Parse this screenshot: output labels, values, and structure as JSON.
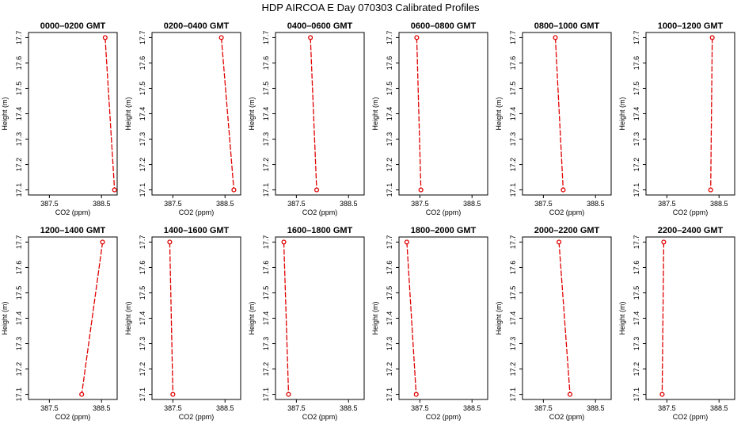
{
  "figure": {
    "title": "HDP  AIRCOA E  Day 070303  Calibrated Profiles"
  },
  "colors": {
    "series": "#e00000",
    "axes": "#000000",
    "background": "#ffffff"
  },
  "chart_data": [
    {
      "type": "line",
      "title": "0000–0200 GMT",
      "xlabel": "CO2 (ppm)",
      "ylabel": "Height (m)",
      "xlim": [
        387.1,
        388.8
      ],
      "ylim": [
        17.08,
        17.72
      ],
      "xticks": [
        {
          "v": 387.5,
          "label": "387.5"
        },
        {
          "v": 388.5,
          "label": "388.5"
        }
      ],
      "yticks": [
        17.1,
        17.2,
        17.3,
        17.4,
        17.5,
        17.6,
        17.7
      ],
      "series": [
        {
          "name": "profile",
          "x": [
            388.57,
            388.75
          ],
          "y": [
            17.7,
            17.1
          ]
        }
      ]
    },
    {
      "type": "line",
      "title": "0200–0400 GMT",
      "xlabel": "CO2 (ppm)",
      "ylabel": "Height (m)",
      "xlim": [
        387.1,
        388.8
      ],
      "ylim": [
        17.08,
        17.72
      ],
      "xticks": [
        {
          "v": 387.5,
          "label": "387.5"
        },
        {
          "v": 388.5,
          "label": "388.5"
        }
      ],
      "yticks": [
        17.1,
        17.2,
        17.3,
        17.4,
        17.5,
        17.6,
        17.7
      ],
      "series": [
        {
          "name": "profile",
          "x": [
            388.43,
            388.67
          ],
          "y": [
            17.7,
            17.1
          ]
        }
      ]
    },
    {
      "type": "line",
      "title": "0400–0600 GMT",
      "xlabel": "CO2 (ppm)",
      "ylabel": "Height (m)",
      "xlim": [
        387.1,
        388.8
      ],
      "ylim": [
        17.08,
        17.72
      ],
      "xticks": [
        {
          "v": 387.5,
          "label": "387.5"
        },
        {
          "v": 388.5,
          "label": "388.5"
        }
      ],
      "yticks": [
        17.1,
        17.2,
        17.3,
        17.4,
        17.5,
        17.6,
        17.7
      ],
      "series": [
        {
          "name": "profile",
          "x": [
            387.77,
            387.89
          ],
          "y": [
            17.7,
            17.1
          ]
        }
      ]
    },
    {
      "type": "line",
      "title": "0600–0800 GMT",
      "xlabel": "CO2 (ppm)",
      "ylabel": "Height (m)",
      "xlim": [
        387.1,
        388.8
      ],
      "ylim": [
        17.08,
        17.72
      ],
      "xticks": [
        {
          "v": 387.5,
          "label": "387.5"
        },
        {
          "v": 388.5,
          "label": "388.5"
        }
      ],
      "yticks": [
        17.1,
        17.2,
        17.3,
        17.4,
        17.5,
        17.6,
        17.7
      ],
      "series": [
        {
          "name": "profile",
          "x": [
            387.44,
            387.52
          ],
          "y": [
            17.7,
            17.1
          ]
        }
      ]
    },
    {
      "type": "line",
      "title": "0800–1000 GMT",
      "xlabel": "CO2 (ppm)",
      "ylabel": "Height (m)",
      "xlim": [
        387.1,
        388.8
      ],
      "ylim": [
        17.08,
        17.72
      ],
      "xticks": [
        {
          "v": 387.5,
          "label": "387.5"
        },
        {
          "v": 388.5,
          "label": "388.5"
        }
      ],
      "yticks": [
        17.1,
        17.2,
        17.3,
        17.4,
        17.5,
        17.6,
        17.7
      ],
      "series": [
        {
          "name": "profile",
          "x": [
            387.73,
            387.88
          ],
          "y": [
            17.7,
            17.1
          ]
        }
      ]
    },
    {
      "type": "line",
      "title": "1000–1200 GMT",
      "xlabel": "CO2 (ppm)",
      "ylabel": "Height (m)",
      "xlim": [
        387.1,
        388.8
      ],
      "ylim": [
        17.08,
        17.72
      ],
      "xticks": [
        {
          "v": 387.5,
          "label": "387.5"
        },
        {
          "v": 388.5,
          "label": "388.5"
        }
      ],
      "yticks": [
        17.1,
        17.2,
        17.3,
        17.4,
        17.5,
        17.6,
        17.7
      ],
      "series": [
        {
          "name": "profile",
          "x": [
            388.37,
            388.34
          ],
          "y": [
            17.7,
            17.1
          ]
        }
      ]
    },
    {
      "type": "line",
      "title": "1200–1400 GMT",
      "xlabel": "CO2 (ppm)",
      "ylabel": "Height (m)",
      "xlim": [
        387.1,
        388.8
      ],
      "ylim": [
        17.08,
        17.72
      ],
      "xticks": [
        {
          "v": 387.5,
          "label": "387.5"
        },
        {
          "v": 388.5,
          "label": "388.5"
        }
      ],
      "yticks": [
        17.1,
        17.2,
        17.3,
        17.4,
        17.5,
        17.6,
        17.7
      ],
      "series": [
        {
          "name": "profile",
          "x": [
            388.52,
            388.12
          ],
          "y": [
            17.7,
            17.1
          ]
        }
      ]
    },
    {
      "type": "line",
      "title": "1400–1600 GMT",
      "xlabel": "CO2 (ppm)",
      "ylabel": "Height (m)",
      "xlim": [
        387.1,
        388.8
      ],
      "ylim": [
        17.08,
        17.72
      ],
      "xticks": [
        {
          "v": 387.5,
          "label": "387.5"
        },
        {
          "v": 388.5,
          "label": "388.5"
        }
      ],
      "yticks": [
        17.1,
        17.2,
        17.3,
        17.4,
        17.5,
        17.6,
        17.7
      ],
      "series": [
        {
          "name": "profile",
          "x": [
            387.44,
            387.5
          ],
          "y": [
            17.7,
            17.1
          ]
        }
      ]
    },
    {
      "type": "line",
      "title": "1600–1800 GMT",
      "xlabel": "CO2 (ppm)",
      "ylabel": "Height (m)",
      "xlim": [
        387.1,
        388.8
      ],
      "ylim": [
        17.08,
        17.72
      ],
      "xticks": [
        {
          "v": 387.5,
          "label": "387.5"
        },
        {
          "v": 388.5,
          "label": "388.5"
        }
      ],
      "yticks": [
        17.1,
        17.2,
        17.3,
        17.4,
        17.5,
        17.6,
        17.7
      ],
      "series": [
        {
          "name": "profile",
          "x": [
            387.26,
            387.35
          ],
          "y": [
            17.7,
            17.1
          ]
        }
      ]
    },
    {
      "type": "line",
      "title": "1800–2000 GMT",
      "xlabel": "CO2 (ppm)",
      "ylabel": "Height (m)",
      "xlim": [
        387.1,
        388.8
      ],
      "ylim": [
        17.08,
        17.72
      ],
      "xticks": [
        {
          "v": 387.5,
          "label": "387.5"
        },
        {
          "v": 388.5,
          "label": "388.5"
        }
      ],
      "yticks": [
        17.1,
        17.2,
        17.3,
        17.4,
        17.5,
        17.6,
        17.7
      ],
      "series": [
        {
          "name": "profile",
          "x": [
            387.25,
            387.43
          ],
          "y": [
            17.7,
            17.1
          ]
        }
      ]
    },
    {
      "type": "line",
      "title": "2000–2200 GMT",
      "xlabel": "CO2 (ppm)",
      "ylabel": "Height (m)",
      "xlim": [
        387.1,
        388.8
      ],
      "ylim": [
        17.08,
        17.72
      ],
      "xticks": [
        {
          "v": 387.5,
          "label": "387.5"
        },
        {
          "v": 388.5,
          "label": "388.5"
        }
      ],
      "yticks": [
        17.1,
        17.2,
        17.3,
        17.4,
        17.5,
        17.6,
        17.7
      ],
      "series": [
        {
          "name": "profile",
          "x": [
            387.8,
            388.01
          ],
          "y": [
            17.7,
            17.1
          ]
        }
      ]
    },
    {
      "type": "line",
      "title": "2200–2400 GMT",
      "xlabel": "CO2 (ppm)",
      "ylabel": "Height (m)",
      "xlim": [
        387.1,
        388.8
      ],
      "ylim": [
        17.08,
        17.72
      ],
      "xticks": [
        {
          "v": 387.5,
          "label": "387.5"
        },
        {
          "v": 388.5,
          "label": "388.5"
        }
      ],
      "yticks": [
        17.1,
        17.2,
        17.3,
        17.4,
        17.5,
        17.6,
        17.7
      ],
      "series": [
        {
          "name": "profile",
          "x": [
            387.44,
            387.41
          ],
          "y": [
            17.7,
            17.1
          ]
        }
      ]
    }
  ]
}
